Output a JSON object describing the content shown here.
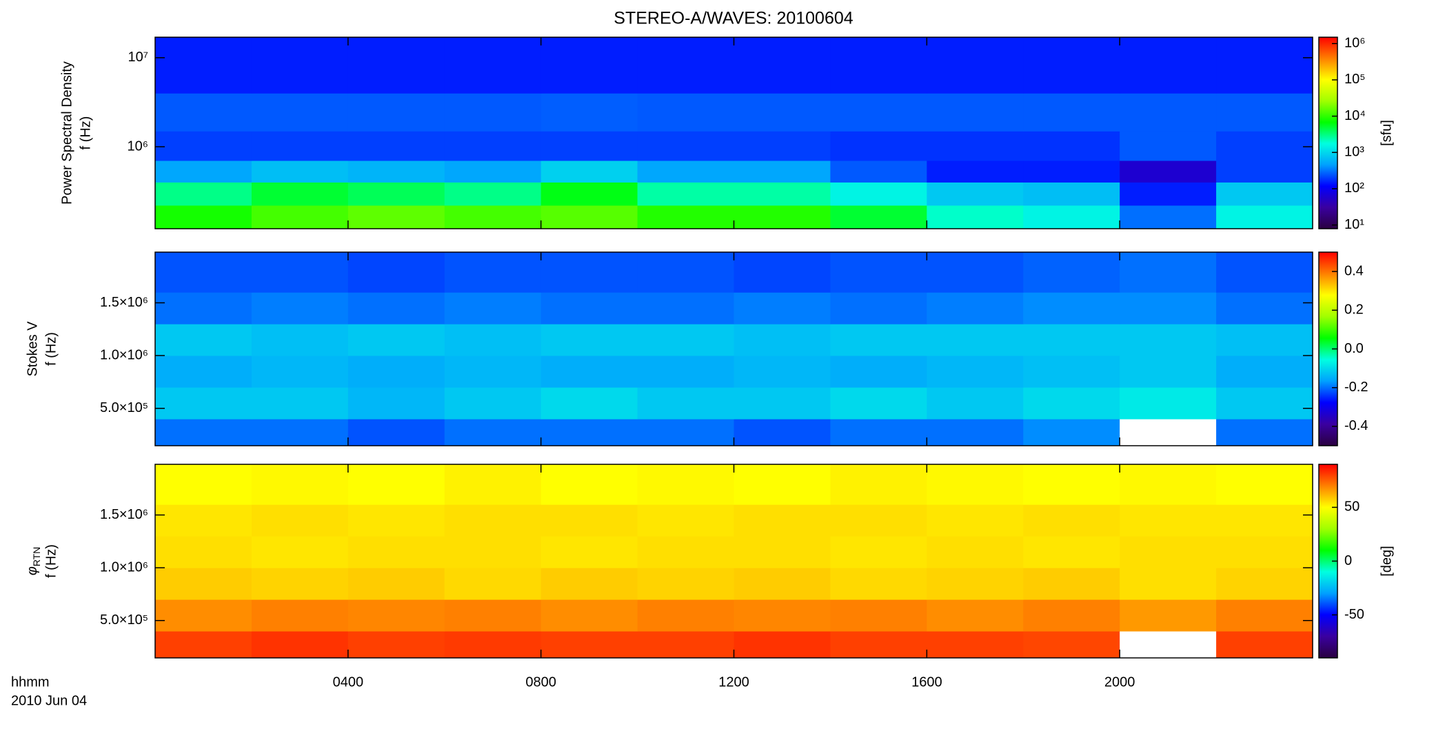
{
  "title": "STEREO-A/WAVES: 20100604",
  "x_label_lines": [
    "hhmm",
    "2010 Jun 04"
  ],
  "chart_data": [
    {
      "type": "heatmap",
      "ylabel_lines": [
        "Power Spectral Density",
        "f (Hz)"
      ],
      "ylog": true,
      "ylim": [
        120000,
        17000000
      ],
      "yticks": [
        {
          "value": 1000000,
          "label": "10⁶"
        },
        {
          "value": 10000000,
          "label": "10⁷"
        }
      ],
      "xlim": [
        0,
        24
      ],
      "xticks": [
        4,
        8,
        12,
        16,
        20
      ],
      "x_bins": [
        0,
        2,
        4,
        6,
        8,
        10,
        12,
        14,
        16,
        18,
        20,
        22,
        24
      ],
      "y_bins": [
        120000,
        220000,
        400000,
        700000,
        1500000,
        4000000,
        17000000
      ],
      "z": [
        [
          8000,
          12000,
          15000,
          12000,
          14000,
          9000,
          9000,
          5000,
          2000,
          1500,
          300,
          1500
        ],
        [
          3000,
          5000,
          4000,
          3000,
          6000,
          2500,
          2500,
          1500,
          800,
          700,
          150,
          800
        ],
        [
          500,
          700,
          600,
          500,
          900,
          500,
          500,
          250,
          150,
          150,
          60,
          200
        ],
        [
          200,
          200,
          200,
          200,
          200,
          200,
          200,
          180,
          180,
          180,
          250,
          200
        ],
        [
          250,
          250,
          250,
          250,
          260,
          250,
          250,
          250,
          250,
          250,
          250,
          250
        ],
        [
          150,
          150,
          150,
          150,
          150,
          150,
          150,
          150,
          150,
          150,
          150,
          150
        ]
      ],
      "clog": true,
      "clim": [
        7.9,
        1500000
      ],
      "cticks": [
        {
          "value": 10,
          "label": "10¹"
        },
        {
          "value": 100,
          "label": "10²"
        },
        {
          "value": 1000,
          "label": "10³"
        },
        {
          "value": 10000,
          "label": "10⁴"
        },
        {
          "value": 100000,
          "label": "10⁵"
        },
        {
          "value": 1000000,
          "label": "10⁶"
        }
      ],
      "clabel": "[sfu]",
      "colormap": [
        "#2a0040",
        "#3a00a0",
        "#0000ff",
        "#00a0ff",
        "#00ffe0",
        "#00ff00",
        "#a0ff00",
        "#ffff00",
        "#ff8000",
        "#ff0000"
      ]
    },
    {
      "type": "heatmap",
      "ylabel_lines": [
        "Stokes V",
        "f (Hz)"
      ],
      "ylim": [
        146000,
        1980000
      ],
      "yticks": [
        {
          "value": 500000,
          "label": "5.0×10⁵"
        },
        {
          "value": 1000000,
          "label": "1.0×10⁶"
        },
        {
          "value": 1500000,
          "label": "1.5×10⁶"
        }
      ],
      "xlim": [
        0,
        24
      ],
      "xticks": [
        4,
        8,
        12,
        16,
        20
      ],
      "x_bins": [
        0,
        2,
        4,
        6,
        8,
        10,
        12,
        14,
        16,
        18,
        20,
        22,
        24
      ],
      "y_bins": [
        146000,
        400000,
        700000,
        1000000,
        1300000,
        1600000,
        1980000
      ],
      "z": [
        [
          -0.2,
          -0.2,
          -0.22,
          -0.2,
          -0.2,
          -0.2,
          -0.22,
          -0.2,
          -0.2,
          -0.18,
          null,
          -0.2
        ],
        [
          -0.12,
          -0.12,
          -0.14,
          -0.12,
          -0.1,
          -0.12,
          -0.12,
          -0.1,
          -0.12,
          -0.1,
          -0.08,
          -0.12
        ],
        [
          -0.15,
          -0.14,
          -0.15,
          -0.14,
          -0.15,
          -0.15,
          -0.14,
          -0.15,
          -0.14,
          -0.13,
          -0.12,
          -0.15
        ],
        [
          -0.12,
          -0.13,
          -0.12,
          -0.13,
          -0.12,
          -0.12,
          -0.13,
          -0.12,
          -0.12,
          -0.12,
          -0.12,
          -0.13
        ],
        [
          -0.2,
          -0.19,
          -0.2,
          -0.19,
          -0.2,
          -0.2,
          -0.19,
          -0.2,
          -0.19,
          -0.18,
          -0.18,
          -0.2
        ],
        [
          -0.22,
          -0.22,
          -0.23,
          -0.22,
          -0.22,
          -0.22,
          -0.23,
          -0.22,
          -0.22,
          -0.21,
          -0.2,
          -0.22
        ]
      ],
      "clim": [
        -0.5,
        0.5
      ],
      "cticks": [
        -0.4,
        -0.2,
        {
          "value": 0,
          "label": "0.0"
        },
        0.2,
        0.4
      ],
      "colormap": [
        "#2a0040",
        "#3a00a0",
        "#0000ff",
        "#00a0ff",
        "#00ffe0",
        "#00ff00",
        "#a0ff00",
        "#ffff00",
        "#ff8000",
        "#ff0000"
      ]
    },
    {
      "type": "heatmap",
      "ylabel_symbol": "φ",
      "ylabel_subscript": "RTN",
      "ylabel_lines": [
        "f (Hz)"
      ],
      "ylim": [
        146000,
        1980000
      ],
      "yticks": [
        {
          "value": 500000,
          "label": "5.0×10⁵"
        },
        {
          "value": 1000000,
          "label": "1.0×10⁶"
        },
        {
          "value": 1500000,
          "label": "1.5×10⁶"
        }
      ],
      "xlim": [
        0,
        24
      ],
      "xticks": [
        {
          "value": 4,
          "label": "0400"
        },
        {
          "value": 8,
          "label": "0800"
        },
        {
          "value": 12,
          "label": "1200"
        },
        {
          "value": 16,
          "label": "1600"
        },
        {
          "value": 20,
          "label": "2000"
        }
      ],
      "x_bins": [
        0,
        2,
        4,
        6,
        8,
        10,
        12,
        14,
        16,
        18,
        20,
        22,
        24
      ],
      "y_bins": [
        146000,
        400000,
        700000,
        1000000,
        1300000,
        1600000,
        1980000
      ],
      "z": [
        [
          80,
          82,
          80,
          81,
          80,
          80,
          82,
          80,
          80,
          79,
          null,
          80
        ],
        [
          68,
          70,
          69,
          70,
          68,
          70,
          69,
          70,
          68,
          70,
          66,
          70
        ],
        [
          58,
          57,
          58,
          56,
          58,
          57,
          58,
          56,
          57,
          58,
          55,
          57
        ],
        [
          55,
          54,
          55,
          55,
          54,
          55,
          55,
          54,
          55,
          54,
          55,
          55
        ],
        [
          54,
          55,
          54,
          55,
          55,
          54,
          55,
          55,
          54,
          55,
          54,
          54
        ],
        [
          50,
          51,
          50,
          52,
          50,
          51,
          50,
          52,
          51,
          50,
          51,
          50
        ]
      ],
      "clim": [
        -90,
        90
      ],
      "cticks": [
        -50,
        0,
        50
      ],
      "clabel": "[deg]",
      "colormap": [
        "#2a0040",
        "#3a00a0",
        "#0000ff",
        "#00a0ff",
        "#00ffe0",
        "#00ff00",
        "#a0ff00",
        "#ffff00",
        "#ff8000",
        "#ff0000"
      ]
    }
  ]
}
